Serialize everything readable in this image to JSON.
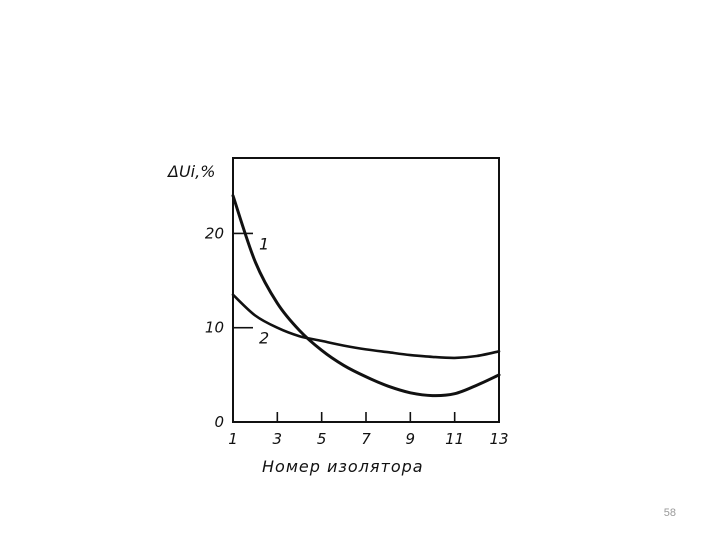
{
  "slide": {
    "page_number": "58"
  },
  "chart_data": {
    "type": "line",
    "title": "",
    "xlabel": "Номер изолятора",
    "ylabel": "ΔUi,%",
    "xlim": [
      1,
      13
    ],
    "ylim": [
      0,
      28
    ],
    "x_ticks": [
      1,
      3,
      5,
      7,
      9,
      11,
      13
    ],
    "x_tick_labels": [
      "1",
      "3",
      "5",
      "7",
      "9",
      "11",
      "13"
    ],
    "y_ticks": [
      0,
      10,
      20
    ],
    "y_tick_labels": [
      "0",
      "10",
      "20"
    ],
    "grid": false,
    "series": [
      {
        "name": "1",
        "x": [
          1,
          2,
          3,
          4,
          5,
          6,
          7,
          8,
          9,
          10,
          11,
          12,
          13
        ],
        "y": [
          24,
          17,
          12.6,
          9.7,
          7.6,
          6.0,
          4.8,
          3.8,
          3.1,
          2.8,
          3.0,
          3.9,
          5.0
        ],
        "label_at_y": 20
      },
      {
        "name": "2",
        "x": [
          1,
          2,
          3,
          4,
          5,
          6,
          7,
          8,
          9,
          10,
          11,
          12,
          13
        ],
        "y": [
          13.5,
          11.3,
          10.0,
          9.1,
          8.6,
          8.1,
          7.7,
          7.4,
          7.1,
          6.9,
          6.8,
          7.0,
          7.5
        ],
        "label_at_y": 10
      }
    ],
    "colors": {
      "line": "#111111",
      "axis": "#111111"
    }
  }
}
